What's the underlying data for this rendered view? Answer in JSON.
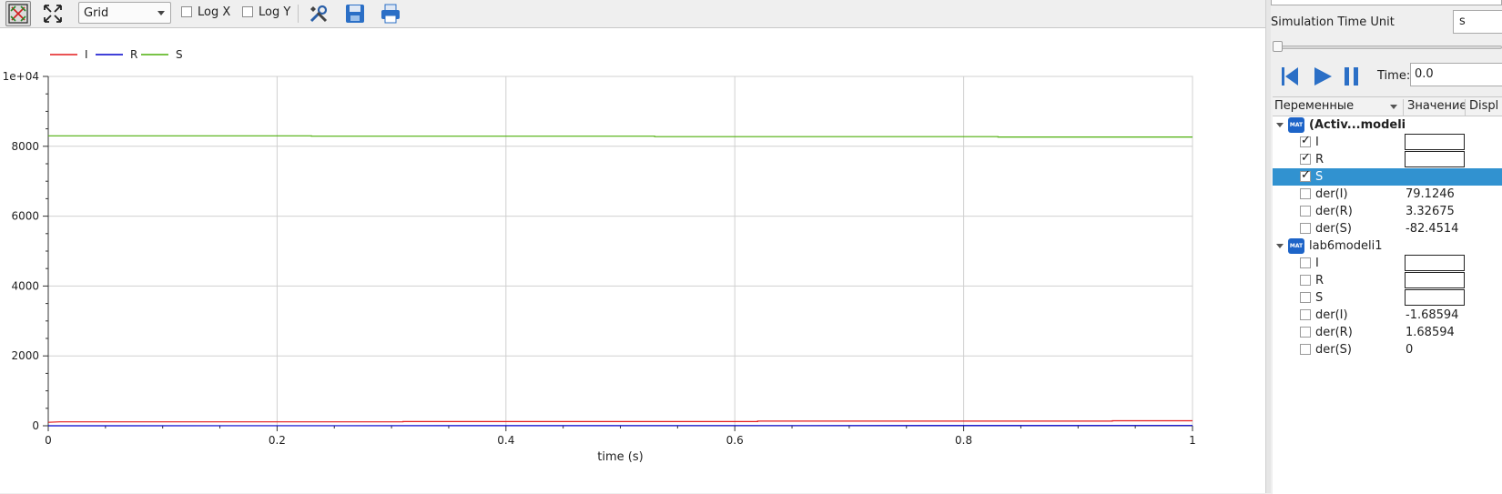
{
  "toolbar": {
    "grid_combo": "Grid",
    "log_x_label": "Log X",
    "log_y_label": "Log Y"
  },
  "chart_data": {
    "type": "line",
    "xlabel": "time (s)",
    "ylabel": "",
    "xlim": [
      0,
      1
    ],
    "ylim": [
      0,
      10000
    ],
    "x_ticks": [
      "0",
      "0.2",
      "0.4",
      "0.6",
      "0.8",
      "1"
    ],
    "y_ticks": [
      "0",
      "2000",
      "4000",
      "6000",
      "8000",
      "1e+04"
    ],
    "grid": true,
    "legend_position": "top-left",
    "series": [
      {
        "name": "I",
        "color": "#e41a1c",
        "x": [
          0,
          0.01,
          0.31,
          0.31,
          0.62,
          0.62,
          0.93,
          0.93,
          1.0
        ],
        "y": [
          99,
          111,
          111,
          121,
          121,
          132,
          132,
          144,
          144
        ]
      },
      {
        "name": "R",
        "color": "#0000cc",
        "x": [
          0,
          1.0
        ],
        "y": [
          1,
          8
        ]
      },
      {
        "name": "S",
        "color": "#4daf0a",
        "x": [
          0,
          0.23,
          0.23,
          0.53,
          0.53,
          0.83,
          0.83,
          1.0
        ],
        "y": [
          8300,
          8300,
          8290,
          8290,
          8275,
          8275,
          8265,
          8265
        ]
      }
    ]
  },
  "right_panel": {
    "unit_label": "Simulation Time Unit",
    "unit_value": "s",
    "time_label": "Time:",
    "time_value": "0.0",
    "columns": [
      "Переменные",
      "Значение",
      "Displ"
    ],
    "groups": [
      {
        "name": "(Activ...modeli",
        "vars": [
          {
            "name": "I",
            "checked": true,
            "value": ""
          },
          {
            "name": "R",
            "checked": true,
            "value": ""
          },
          {
            "name": "S",
            "checked": true,
            "value": ""
          },
          {
            "name": "der(I)",
            "checked": false,
            "value": "79.1246"
          },
          {
            "name": "der(R)",
            "checked": false,
            "value": "3.32675"
          },
          {
            "name": "der(S)",
            "checked": false,
            "value": "-82.4514"
          }
        ]
      },
      {
        "name": "lab6modeli1",
        "vars": [
          {
            "name": "I",
            "checked": false,
            "value": ""
          },
          {
            "name": "R",
            "checked": false,
            "value": ""
          },
          {
            "name": "S",
            "checked": false,
            "value": ""
          },
          {
            "name": "der(I)",
            "checked": false,
            "value": "-1.68594"
          },
          {
            "name": "der(R)",
            "checked": false,
            "value": "1.68594"
          },
          {
            "name": "der(S)",
            "checked": false,
            "value": "0"
          }
        ]
      }
    ]
  }
}
